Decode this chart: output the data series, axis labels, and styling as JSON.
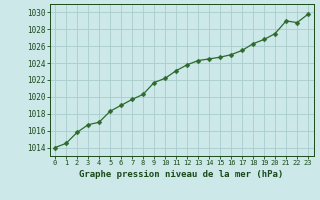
{
  "x": [
    0,
    1,
    2,
    3,
    4,
    5,
    6,
    7,
    8,
    9,
    10,
    11,
    12,
    13,
    14,
    15,
    16,
    17,
    18,
    19,
    20,
    21,
    22,
    23
  ],
  "y": [
    1014.0,
    1014.5,
    1015.8,
    1016.7,
    1017.0,
    1018.3,
    1019.0,
    1019.7,
    1020.3,
    1021.7,
    1022.2,
    1023.1,
    1023.8,
    1024.3,
    1024.5,
    1024.7,
    1025.0,
    1025.5,
    1026.3,
    1026.8,
    1027.5,
    1029.0,
    1028.8,
    1029.8
  ],
  "line_color": "#2d6a2d",
  "marker": "D",
  "marker_size": 2.5,
  "bg_color": "#cce8e8",
  "grid_color": "#aacccc",
  "xlabel": "Graphe pression niveau de la mer (hPa)",
  "xlabel_color": "#1a4a1a",
  "tick_color": "#1a4a1a",
  "ylim": [
    1013,
    1031
  ],
  "xlim": [
    -0.5,
    23.5
  ],
  "yticks": [
    1014,
    1016,
    1018,
    1020,
    1022,
    1024,
    1026,
    1028,
    1030
  ],
  "xticks": [
    0,
    1,
    2,
    3,
    4,
    5,
    6,
    7,
    8,
    9,
    10,
    11,
    12,
    13,
    14,
    15,
    16,
    17,
    18,
    19,
    20,
    21,
    22,
    23
  ],
  "xtick_labels": [
    "0",
    "1",
    "2",
    "3",
    "4",
    "5",
    "6",
    "7",
    "8",
    "9",
    "10",
    "11",
    "12",
    "13",
    "14",
    "15",
    "16",
    "17",
    "18",
    "19",
    "20",
    "21",
    "22",
    "23"
  ]
}
